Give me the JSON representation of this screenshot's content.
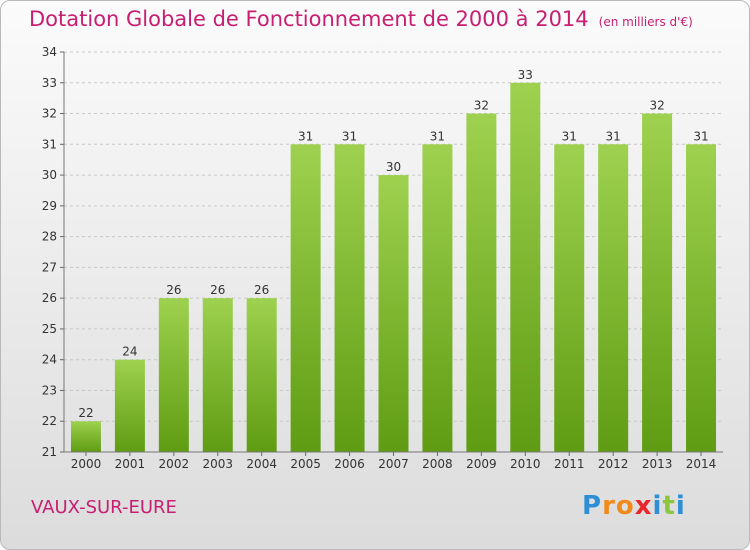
{
  "title": "Dotation Globale de Fonctionnement de 2000 à 2014",
  "unit": "(en milliers d'€)",
  "commune": "VAUX-SUR-EURE",
  "logo": {
    "letters": [
      "P",
      "r",
      "o",
      "x",
      "i",
      "t",
      "i"
    ],
    "colors": [
      "#2e8fd6",
      "#f08a1a",
      "#f08a1a",
      "#e8262b",
      "#2e8fd6",
      "#8cc63f",
      "#2e8fd6"
    ]
  },
  "colors": {
    "title": "#c81e72",
    "bar_top": "#9ed14f",
    "bar_bottom": "#5f9c13",
    "grid": "#c8c8c8"
  },
  "chart_data": {
    "type": "bar",
    "title": "Dotation Globale de Fonctionnement de 2000 à 2014",
    "categories": [
      "2000",
      "2001",
      "2002",
      "2003",
      "2004",
      "2005",
      "2006",
      "2007",
      "2008",
      "2009",
      "2010",
      "2011",
      "2012",
      "2013",
      "2014"
    ],
    "values": [
      22,
      24,
      26,
      26,
      26,
      31,
      31,
      30,
      31,
      32,
      33,
      31,
      31,
      32,
      31
    ],
    "ylim": [
      21,
      34
    ],
    "yticks": [
      21,
      22,
      23,
      24,
      25,
      26,
      27,
      28,
      29,
      30,
      31,
      32,
      33,
      34
    ],
    "grid": "horizontal-dashed",
    "xlabel": "",
    "ylabel": ""
  }
}
